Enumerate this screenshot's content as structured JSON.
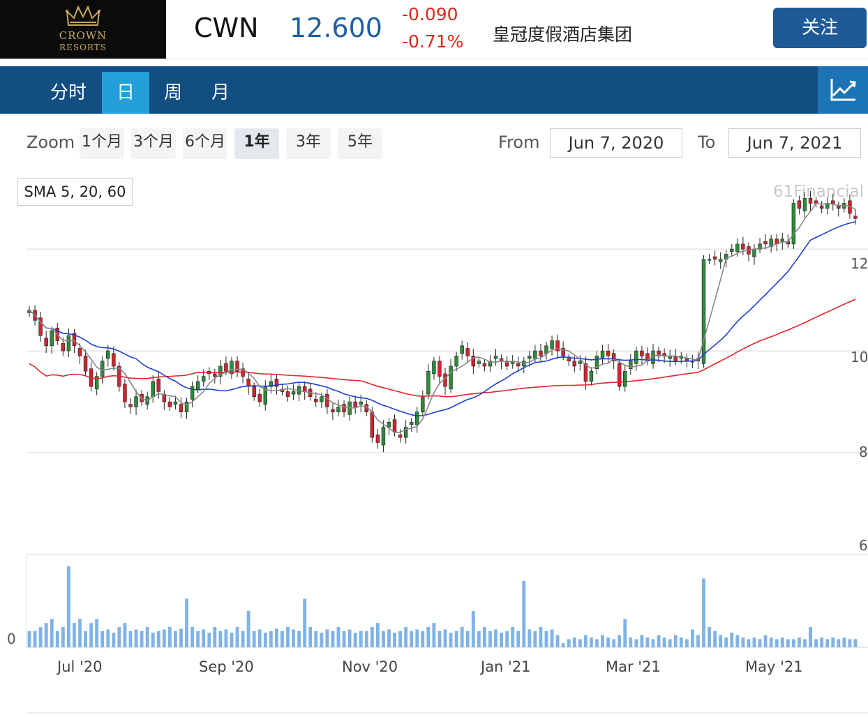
{
  "header": {
    "logo_line1": "CROWN",
    "logo_line2": "RESORTS",
    "ticker": "CWN",
    "price": "12.600",
    "change": "-0.090",
    "change_pct": "-0.71%",
    "company_name": "皇冠度假酒店集团",
    "follow_label": "关注"
  },
  "nav": {
    "tabs": [
      {
        "label": "分时",
        "active": false
      },
      {
        "label": "日",
        "active": true
      },
      {
        "label": "周",
        "active": false
      },
      {
        "label": "月",
        "active": false
      }
    ],
    "chart_icon": "chart-trend-icon"
  },
  "controls": {
    "zoom_label": "Zoom",
    "zoom_options": [
      "1个月",
      "3个月",
      "6个月",
      "1年",
      "3年",
      "5年"
    ],
    "zoom_selected": "1年",
    "from_label": "From",
    "from_value": "Jun 7, 2020",
    "to_label": "To",
    "to_value": "Jun 7, 2021"
  },
  "chart": {
    "indicator_label": "SMA 5, 20, 60",
    "credit": "61Financial"
  },
  "colors": {
    "up": "#2e8b3a",
    "down": "#d0242e",
    "sma5": "#888888",
    "sma20": "#1f3fd0",
    "sma60": "#e0262e",
    "volume": "#7fb3e6",
    "accent": "#124e82"
  },
  "chart_data": {
    "type": "candlestick",
    "ylim": [
      6,
      13.4
    ],
    "y_ticks": [
      "12",
      "10",
      "8",
      "6"
    ],
    "volume_tick": "0",
    "x_ticks": [
      "Jul '20",
      "Sep '20",
      "Nov '20",
      "Jan '21",
      "Mar '21",
      "May '21"
    ],
    "close": [
      10.8,
      10.6,
      10.3,
      10.1,
      10.4,
      10.2,
      10.0,
      10.3,
      10.1,
      9.9,
      9.6,
      9.3,
      9.5,
      9.8,
      10.0,
      9.7,
      9.3,
      9.0,
      8.9,
      9.1,
      9.0,
      9.1,
      9.4,
      9.2,
      9.0,
      8.9,
      9.0,
      8.8,
      9.0,
      9.3,
      9.4,
      9.5,
      9.6,
      9.5,
      9.7,
      9.6,
      9.8,
      9.6,
      9.5,
      9.3,
      9.1,
      9.0,
      9.3,
      9.4,
      9.3,
      9.2,
      9.1,
      9.2,
      9.3,
      9.2,
      9.1,
      9.0,
      9.1,
      8.9,
      8.8,
      8.9,
      8.8,
      9.0,
      8.9,
      9.0,
      8.8,
      8.3,
      8.2,
      8.5,
      8.6,
      8.4,
      8.3,
      8.5,
      8.6,
      8.8,
      9.1,
      9.6,
      9.8,
      9.5,
      9.3,
      9.7,
      9.9,
      10.1,
      9.9,
      9.7,
      9.8,
      9.7,
      9.8,
      9.9,
      9.8,
      9.7,
      9.8,
      9.7,
      9.8,
      9.9,
      10.0,
      9.9,
      10.1,
      10.2,
      10.0,
      9.9,
      9.8,
      9.7,
      9.8,
      9.4,
      9.6,
      9.9,
      10.0,
      9.9,
      9.8,
      9.3,
      9.6,
      9.8,
      10.0,
      9.9,
      9.8,
      10.0,
      9.9,
      9.9,
      9.9,
      9.8,
      9.9,
      9.8,
      9.8,
      9.8,
      11.8,
      11.8,
      11.8,
      11.8,
      11.9,
      12.0,
      12.1,
      12.0,
      11.9,
      12.0,
      12.1,
      12.1,
      12.2,
      12.1,
      12.2,
      12.1,
      12.9,
      12.8,
      13.0,
      12.9,
      12.9,
      12.8,
      12.9,
      12.9,
      12.8,
      12.9,
      12.7,
      12.6
    ],
    "volume_rel": [
      0.2,
      0.2,
      0.25,
      0.3,
      0.35,
      0.2,
      0.25,
      1.0,
      0.3,
      0.35,
      0.2,
      0.3,
      0.35,
      0.2,
      0.22,
      0.18,
      0.25,
      0.3,
      0.2,
      0.22,
      0.2,
      0.25,
      0.18,
      0.2,
      0.22,
      0.25,
      0.2,
      0.23,
      0.6,
      0.25,
      0.2,
      0.22,
      0.18,
      0.25,
      0.2,
      0.22,
      0.18,
      0.25,
      0.2,
      0.45,
      0.2,
      0.22,
      0.18,
      0.2,
      0.23,
      0.2,
      0.25,
      0.22,
      0.2,
      0.6,
      0.25,
      0.2,
      0.18,
      0.22,
      0.2,
      0.25,
      0.2,
      0.22,
      0.18,
      0.2,
      0.2,
      0.25,
      0.3,
      0.2,
      0.22,
      0.18,
      0.2,
      0.25,
      0.2,
      0.22,
      0.2,
      0.25,
      0.3,
      0.2,
      0.22,
      0.18,
      0.2,
      0.25,
      0.2,
      0.45,
      0.2,
      0.25,
      0.2,
      0.22,
      0.18,
      0.2,
      0.25,
      0.2,
      0.82,
      0.22,
      0.2,
      0.25,
      0.2,
      0.22,
      0.15,
      0.05,
      0.1,
      0.12,
      0.1,
      0.15,
      0.12,
      0.1,
      0.15,
      0.12,
      0.1,
      0.15,
      0.35,
      0.12,
      0.1,
      0.15,
      0.12,
      0.1,
      0.15,
      0.12,
      0.1,
      0.15,
      0.12,
      0.1,
      0.22,
      0.15,
      0.85,
      0.25,
      0.2,
      0.15,
      0.12,
      0.18,
      0.15,
      0.12,
      0.1,
      0.12,
      0.1,
      0.15,
      0.12,
      0.1,
      0.12,
      0.1,
      0.1,
      0.12,
      0.1,
      0.25,
      0.1,
      0.12,
      0.1,
      0.12,
      0.1,
      0.12,
      0.1,
      0.1
    ]
  }
}
